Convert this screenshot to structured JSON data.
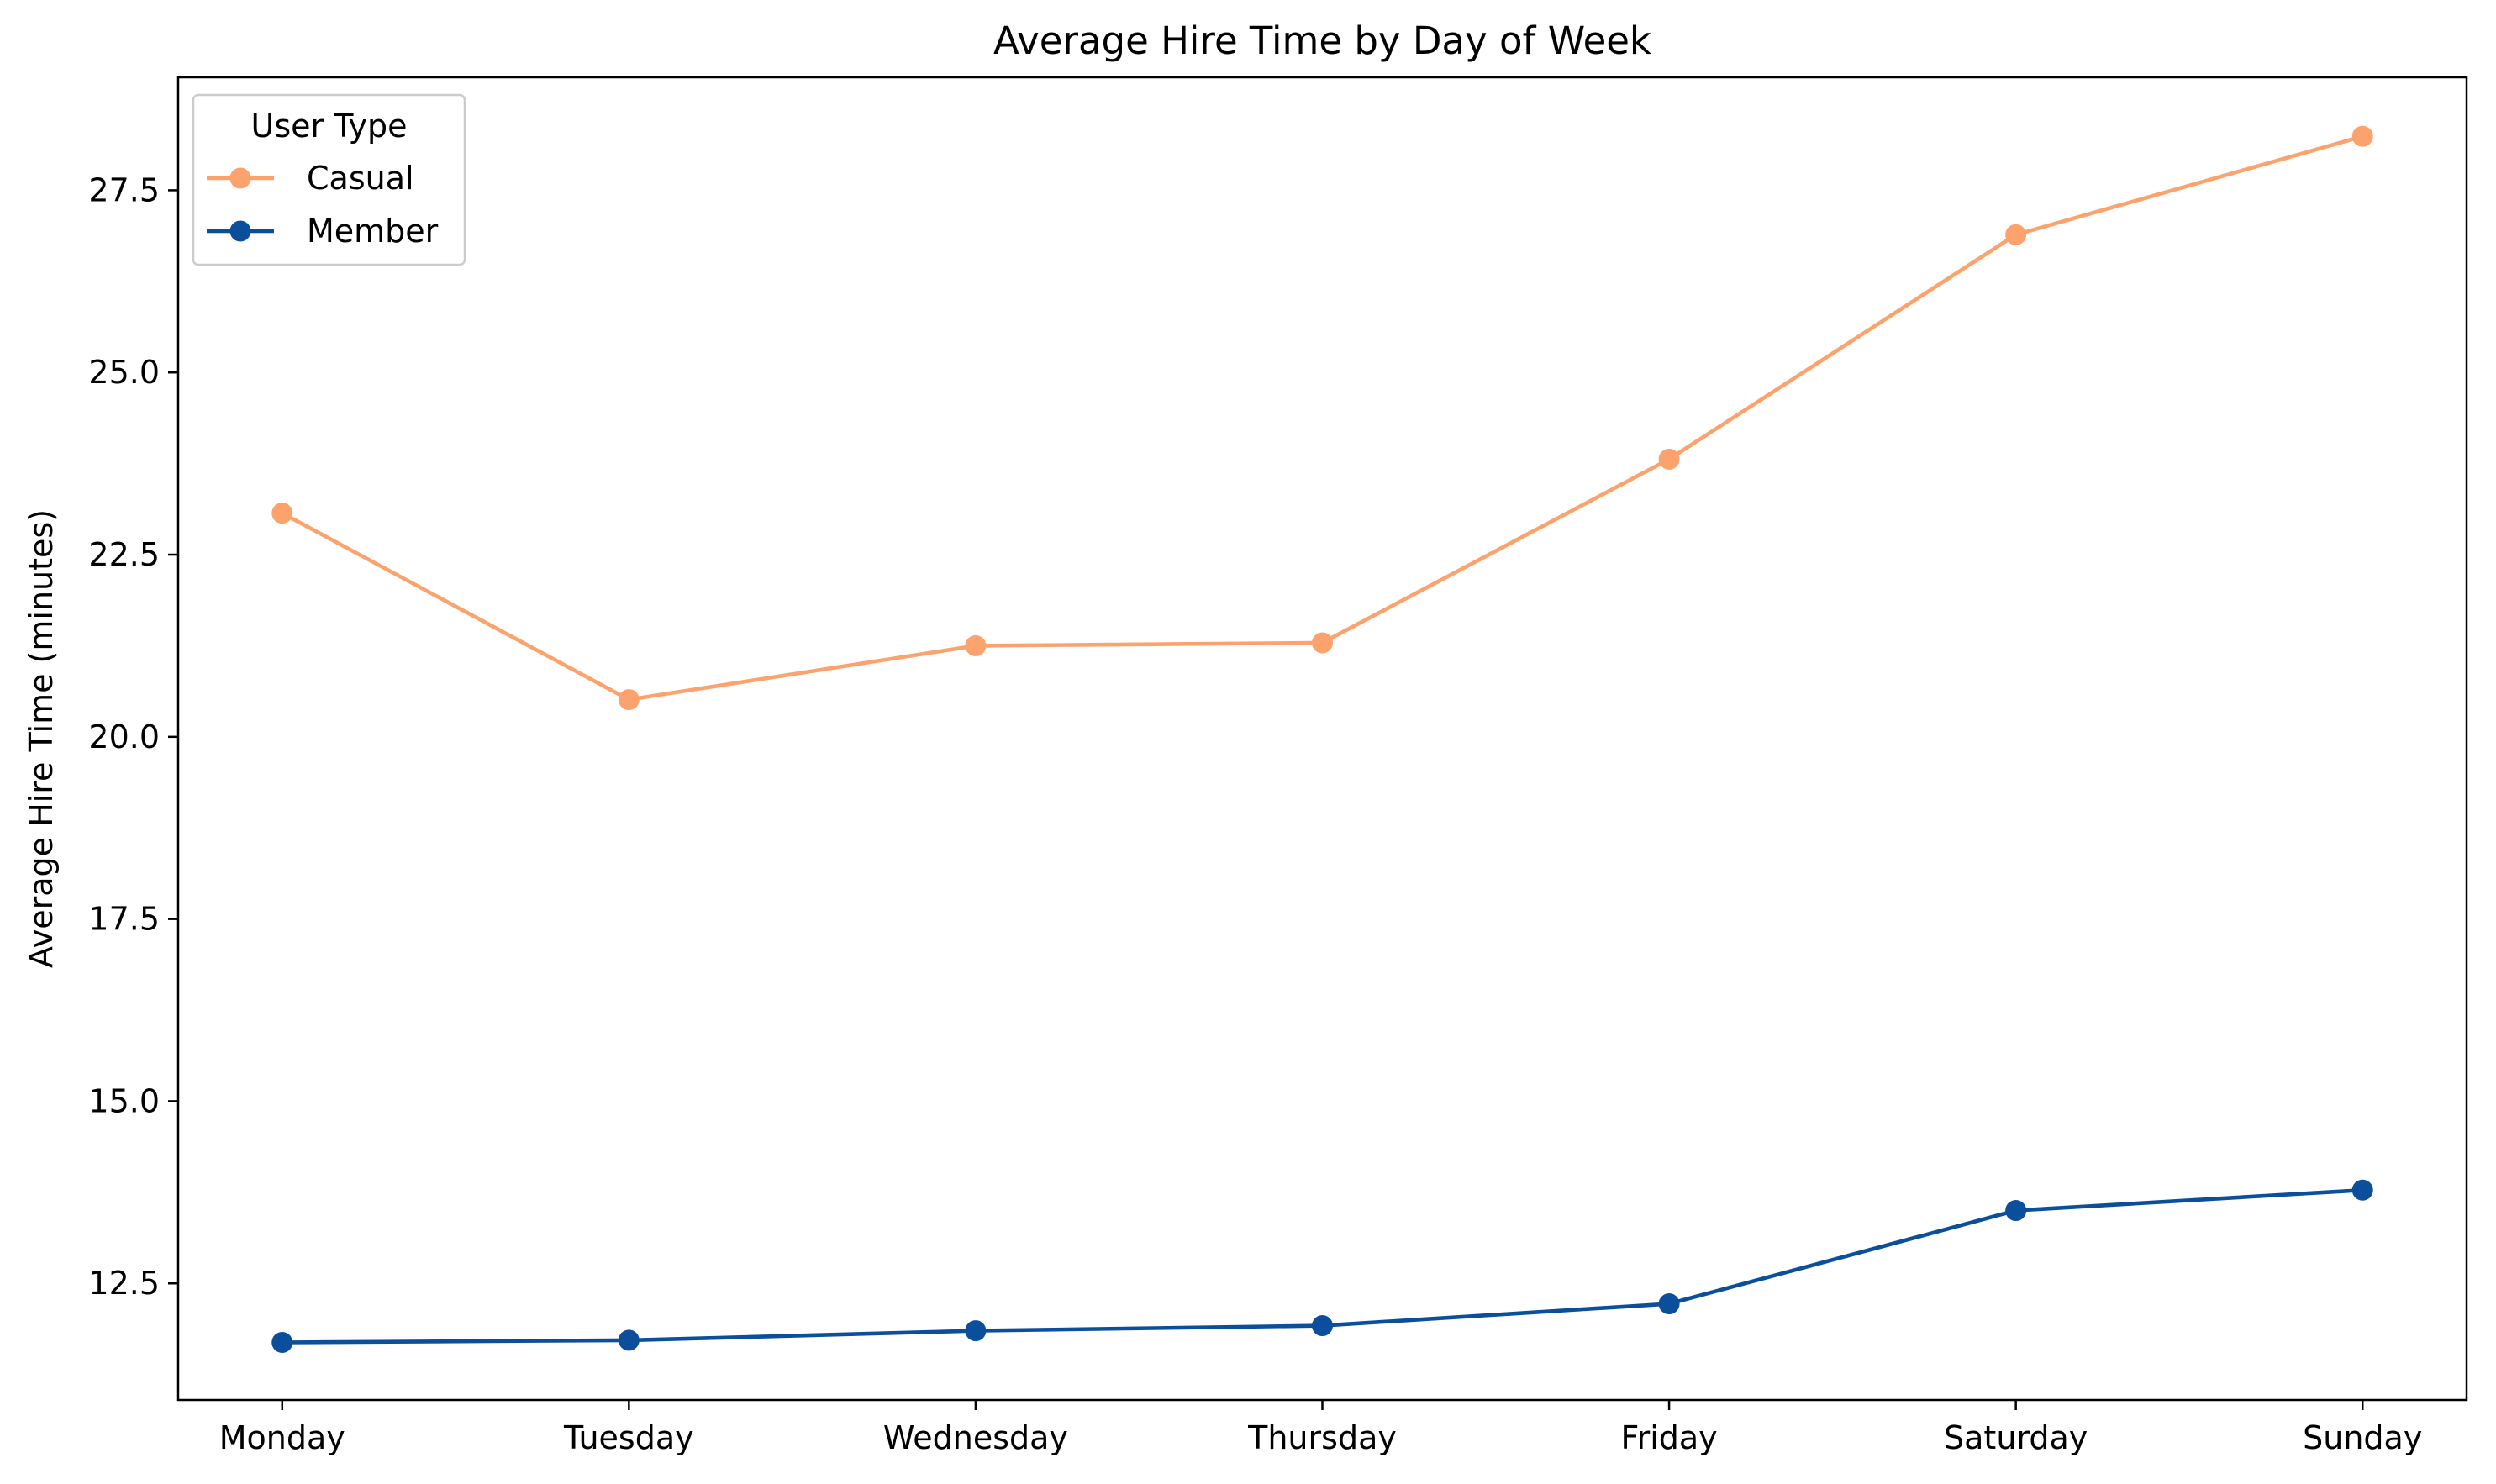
{
  "chart_data": {
    "type": "line",
    "title": "Average Hire Time by Day of Week",
    "xlabel": "",
    "ylabel": "Average Hire Time (minutes)",
    "categories": [
      "Monday",
      "Tuesday",
      "Wednesday",
      "Thursday",
      "Friday",
      "Saturday",
      "Sunday"
    ],
    "ylim": [
      10.9,
      29.05
    ],
    "yticks": [
      12.5,
      15.0,
      17.5,
      20.0,
      22.5,
      25.0,
      27.5
    ],
    "grid": false,
    "legend": {
      "title": "User Type",
      "placement": "top-left"
    },
    "series": [
      {
        "name": "Casual",
        "color": "#FCA36D",
        "marker": "circle",
        "values": [
          23.07,
          20.51,
          21.25,
          21.29,
          23.81,
          26.89,
          28.24
        ]
      },
      {
        "name": "Member",
        "color": "#0B4F9C",
        "marker": "circle",
        "values": [
          11.69,
          11.72,
          11.85,
          11.92,
          12.22,
          13.5,
          13.78
        ]
      }
    ]
  }
}
